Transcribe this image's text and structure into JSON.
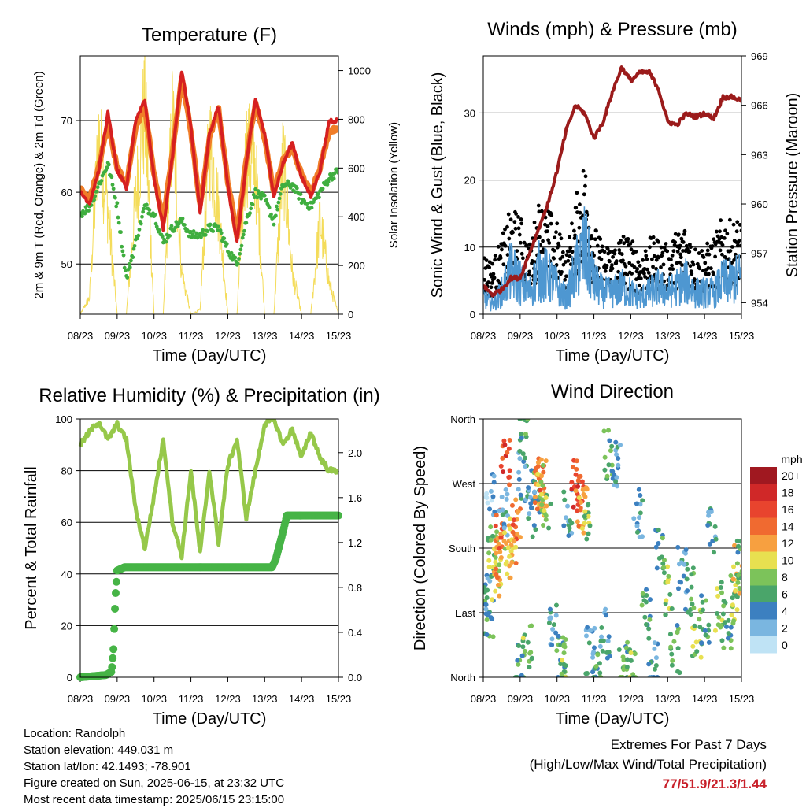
{
  "colors": {
    "temp_2m": "#d62020",
    "temp_9m": "#f07d28",
    "dewpoint": "#3fae3f",
    "solar": "#f4dc5a",
    "wind": "#4e97d1",
    "gust": "#000000",
    "pressure": "#9b1b1b",
    "rh": "#96c84a",
    "precip": "#46b446"
  },
  "footer": {
    "location": "Location: Randolph",
    "elevation": "Station elevation: 449.031 m",
    "latlon": "Station lat/lon: 42.1493; -78.901",
    "created": "Figure created on Sun, 2025-06-15, at 23:32 UTC",
    "recent": "Most recent data timestamp: 2025/06/15 23:15:00"
  },
  "extremes": {
    "line1": "Extremes For Past 7 Days",
    "line2": "(High/Low/Max Wind/Total Precipitation)",
    "values": "77/51.9/21.3/1.44"
  },
  "chart_data": [
    {
      "type": "line",
      "title": "Temperature (F)",
      "xlabel": "Time (Day/UTC)",
      "ylabel": "2m & 9m T (Red, Orange) & 2m Td (Green)",
      "ylabel_right": "Solar Insolation (Yellow)",
      "xticks": [
        "08/23",
        "09/23",
        "10/23",
        "11/23",
        "12/23",
        "13/23",
        "14/23",
        "15/23"
      ],
      "xlim": [
        0,
        7
      ],
      "ylim": [
        43,
        79
      ],
      "yticks": [
        50,
        60,
        70
      ],
      "ylim_right": [
        0,
        1060
      ],
      "yticks_right": [
        0,
        200,
        400,
        600,
        800,
        1000
      ],
      "grid": "horizontal",
      "x": [
        0,
        0.25,
        0.5,
        0.75,
        1,
        1.25,
        1.5,
        1.75,
        2,
        2.25,
        2.5,
        2.75,
        3,
        3.25,
        3.5,
        3.75,
        4,
        4.25,
        4.5,
        4.75,
        5,
        5.25,
        5.5,
        5.75,
        6,
        6.25,
        6.5,
        6.75,
        7
      ],
      "series": [
        {
          "key": "temp_2m",
          "values": [
            60,
            58.5,
            63,
            71,
            63,
            60.5,
            70,
            73,
            62,
            55,
            65,
            77,
            69,
            57,
            68,
            72,
            61,
            53,
            64,
            73,
            68,
            59.5,
            64,
            67,
            62,
            59.5,
            63,
            70,
            70
          ]
        },
        {
          "key": "temp_9m",
          "values": [
            60.5,
            59,
            63.5,
            69.5,
            63.5,
            61,
            69,
            72,
            62.5,
            56,
            65.5,
            76,
            68.5,
            58,
            67.5,
            71.5,
            61.5,
            54,
            64.5,
            72.5,
            67.5,
            60,
            64.5,
            66,
            62.5,
            60,
            63.5,
            68.5,
            69
          ]
        },
        {
          "key": "dewpoint",
          "values": [
            57,
            58,
            61,
            64,
            58,
            48,
            53,
            58,
            57,
            53,
            55,
            56,
            54,
            54,
            55,
            55,
            52,
            50,
            56,
            60,
            59,
            56,
            61,
            61,
            59,
            58,
            60,
            62,
            63
          ]
        },
        {
          "key": "solar",
          "axis": "right",
          "values": [
            0,
            80,
            850,
            500,
            0,
            0,
            550,
            1000,
            0,
            0,
            950,
            200,
            0,
            20,
            850,
            500,
            0,
            0,
            800,
            700,
            0,
            0,
            750,
            200,
            0,
            0,
            450,
            150,
            0
          ]
        }
      ]
    },
    {
      "type": "scatter",
      "title": "Winds (mph) & Pressure (mb)",
      "xlabel": "Time (Day/UTC)",
      "ylabel": "Sonic Wind & Gust (Blue, Black)",
      "ylabel_right": "Station Pressure (Maroon)",
      "xticks": [
        "08/23",
        "09/23",
        "10/23",
        "11/23",
        "12/23",
        "13/23",
        "14/23",
        "15/23"
      ],
      "xlim": [
        0,
        7
      ],
      "ylim": [
        0,
        38.5
      ],
      "yticks": [
        0,
        10,
        20,
        30
      ],
      "ylim_right": [
        953.3,
        969
      ],
      "yticks_right": [
        954,
        957,
        960,
        963,
        966,
        969
      ],
      "grid": "horizontal",
      "x": [
        0,
        0.25,
        0.5,
        0.75,
        1,
        1.25,
        1.5,
        1.75,
        2,
        2.25,
        2.5,
        2.75,
        3,
        3.25,
        3.5,
        3.75,
        4,
        4.25,
        4.5,
        4.75,
        5,
        5.25,
        5.5,
        5.75,
        6,
        6.25,
        6.5,
        6.75,
        7
      ],
      "series": [
        {
          "key": "gust",
          "values": [
            8,
            7,
            10,
            14,
            13,
            9,
            15,
            14,
            12,
            8,
            15,
            21,
            12,
            9,
            9,
            11,
            10,
            8,
            10,
            10,
            9,
            11,
            12,
            9,
            9,
            10,
            13,
            12,
            13
          ]
        },
        {
          "key": "wind",
          "values": [
            3,
            2,
            4,
            8,
            6,
            4,
            8,
            7,
            5,
            3,
            8,
            12,
            6,
            4,
            4,
            5,
            4,
            3,
            4,
            5,
            4,
            5,
            6,
            4,
            4,
            4,
            6,
            6,
            7
          ]
        },
        {
          "key": "pressure",
          "axis": "right",
          "values": [
            955,
            954.5,
            954.8,
            955.5,
            955.5,
            957,
            958.5,
            960,
            962,
            964.5,
            966,
            965.5,
            964,
            965,
            966.8,
            968.3,
            967.5,
            968,
            968,
            967,
            965,
            964.8,
            965.5,
            965.3,
            965.5,
            965.2,
            966.5,
            966.5,
            966.3
          ]
        }
      ]
    },
    {
      "type": "line",
      "title": "Relative Humidity (%) & Precipitation (in)",
      "xlabel": "Time (Day/UTC)",
      "ylabel": "Percent & Total Rainfall",
      "xticks": [
        "08/23",
        "09/23",
        "10/23",
        "11/23",
        "12/23",
        "13/23",
        "14/23",
        "15/23"
      ],
      "xlim": [
        0,
        7
      ],
      "ylim": [
        0,
        100
      ],
      "yticks": [
        0,
        20,
        40,
        60,
        80,
        100
      ],
      "ylim_right": [
        0,
        2.3
      ],
      "yticks_right": [
        "0.0",
        "0.4",
        "0.8",
        "1.2",
        "1.6",
        "2.0"
      ],
      "grid": "horizontal",
      "x": [
        0,
        0.25,
        0.5,
        0.75,
        1,
        1.25,
        1.5,
        1.75,
        2,
        2.25,
        2.5,
        2.75,
        3,
        3.25,
        3.5,
        3.75,
        4,
        4.25,
        4.5,
        4.75,
        5,
        5.25,
        5.5,
        5.75,
        6,
        6.25,
        6.5,
        6.75,
        7
      ],
      "series": [
        {
          "key": "rh",
          "values": [
            90,
            95,
            99,
            92,
            98,
            92,
            65,
            50,
            70,
            92,
            60,
            47,
            80,
            48,
            80,
            52,
            82,
            92,
            62,
            80,
            98,
            100,
            90,
            96,
            85,
            95,
            85,
            80,
            80
          ]
        },
        {
          "key": "precip",
          "axis": "right",
          "x": [
            0,
            0.7,
            0.85,
            0.9,
            0.95,
            1.0,
            1.2,
            2,
            3,
            4,
            5.2,
            5.3,
            5.5,
            5.6,
            5.7,
            6,
            7
          ],
          "values": [
            0,
            0.02,
            0.05,
            0.25,
            0.7,
            0.95,
            0.98,
            0.98,
            0.98,
            0.98,
            0.98,
            1.05,
            1.3,
            1.44,
            1.44,
            1.44,
            1.44
          ]
        }
      ]
    },
    {
      "type": "scatter",
      "title": "Wind Direction",
      "xlabel": "Time (Day/UTC)",
      "ylabel": "Direction (Colored By Speed)",
      "xticks": [
        "08/23",
        "09/23",
        "10/23",
        "11/23",
        "12/23",
        "13/23",
        "14/23",
        "15/23"
      ],
      "xlim": [
        0,
        7
      ],
      "ylim": [
        0,
        360
      ],
      "yticks": [
        "North",
        "East",
        "South",
        "West",
        "North"
      ],
      "grid": "horizontal",
      "legend": {
        "title": "mph",
        "labels": [
          "20+",
          "18",
          "16",
          "14",
          "12",
          "10",
          "8",
          "6",
          "4",
          "2",
          "0"
        ],
        "colors": [
          "#a01820",
          "#d02828",
          "#e8442e",
          "#f06a30",
          "#f7a040",
          "#e8e050",
          "#7cc35a",
          "#4aa56a",
          "#3c80c0",
          "#7ab6e0",
          "#bfe3f5"
        ],
        "placement": "right"
      },
      "points": [
        [
          0.1,
          110,
          4
        ],
        [
          0.15,
          85,
          6
        ],
        [
          0.2,
          250,
          2
        ],
        [
          0.25,
          180,
          8
        ],
        [
          0.35,
          140,
          10
        ],
        [
          0.4,
          160,
          12
        ],
        [
          0.45,
          200,
          14
        ],
        [
          0.55,
          230,
          4
        ],
        [
          0.6,
          300,
          16
        ],
        [
          0.7,
          170,
          10
        ],
        [
          0.8,
          190,
          12
        ],
        [
          0.9,
          220,
          14
        ],
        [
          1.0,
          10,
          6
        ],
        [
          1.05,
          280,
          4
        ],
        [
          1.1,
          350,
          6
        ],
        [
          1.2,
          40,
          8
        ],
        [
          1.3,
          230,
          4
        ],
        [
          1.4,
          260,
          6
        ],
        [
          1.5,
          270,
          14
        ],
        [
          1.55,
          260,
          12
        ],
        [
          1.6,
          270,
          10
        ],
        [
          1.7,
          240,
          8
        ],
        [
          1.9,
          80,
          4
        ],
        [
          2.1,
          30,
          6
        ],
        [
          2.2,
          20,
          8
        ],
        [
          2.3,
          230,
          4
        ],
        [
          2.5,
          270,
          16
        ],
        [
          2.6,
          250,
          14
        ],
        [
          2.7,
          230,
          12
        ],
        [
          2.8,
          210,
          8
        ],
        [
          2.9,
          40,
          4
        ],
        [
          3.1,
          20,
          6
        ],
        [
          3.3,
          60,
          4
        ],
        [
          3.4,
          310,
          6
        ],
        [
          3.6,
          300,
          4
        ],
        [
          3.8,
          20,
          6
        ],
        [
          4.0,
          10,
          8
        ],
        [
          4.2,
          230,
          4
        ],
        [
          4.4,
          100,
          6
        ],
        [
          4.6,
          20,
          4
        ],
        [
          4.8,
          180,
          6
        ],
        [
          5.0,
          120,
          8
        ],
        [
          5.2,
          40,
          6
        ],
        [
          5.4,
          150,
          4
        ],
        [
          5.6,
          120,
          6
        ],
        [
          5.8,
          60,
          8
        ],
        [
          6.0,
          80,
          6
        ],
        [
          6.2,
          200,
          4
        ],
        [
          6.4,
          100,
          8
        ],
        [
          6.6,
          70,
          6
        ],
        [
          6.8,
          110,
          8
        ],
        [
          6.9,
          150,
          10
        ],
        [
          7.0,
          170,
          6
        ]
      ]
    }
  ]
}
